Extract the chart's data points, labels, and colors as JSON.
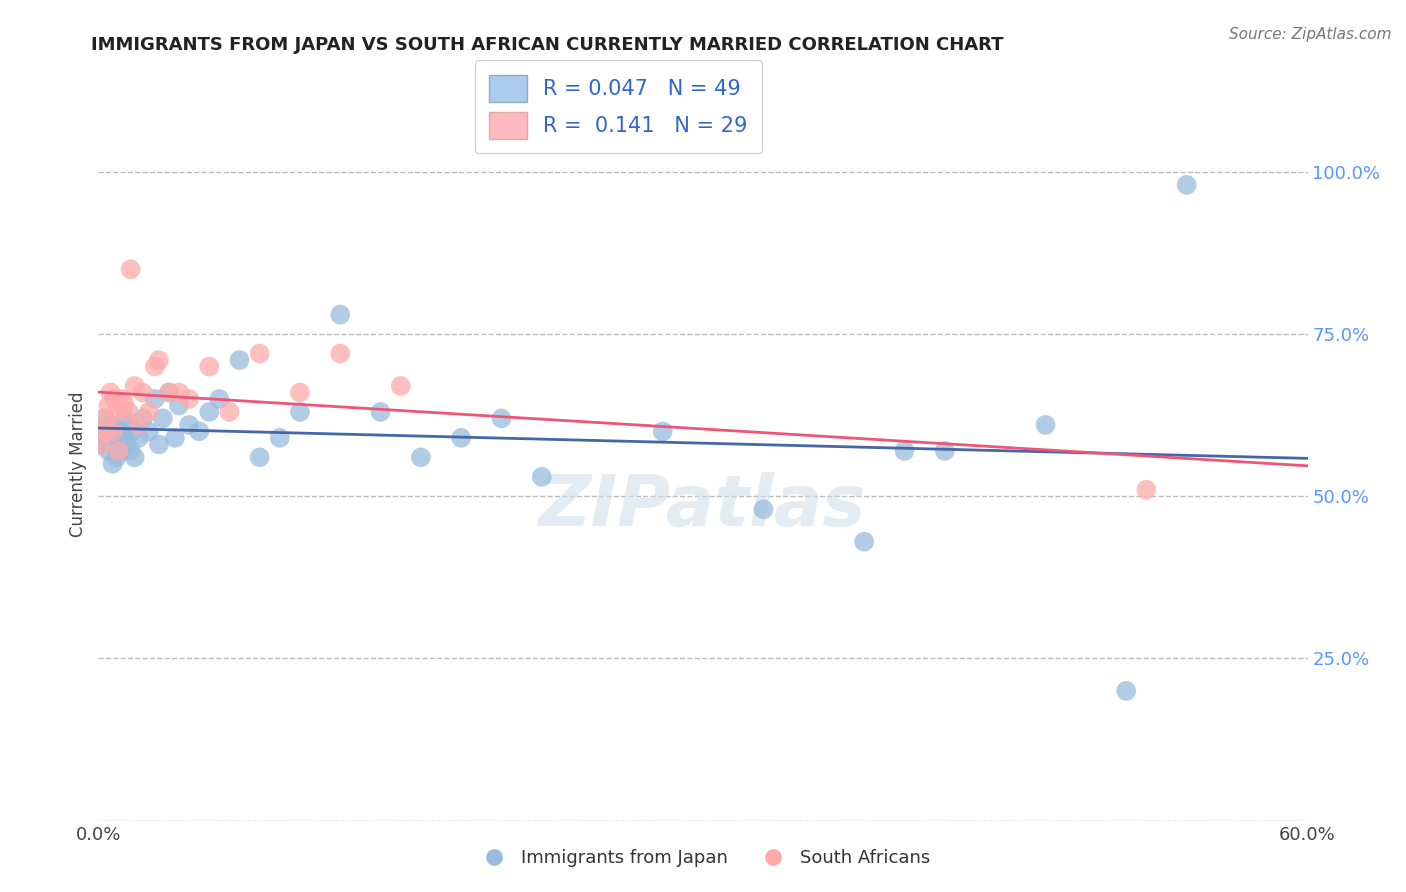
{
  "title": "IMMIGRANTS FROM JAPAN VS SOUTH AFRICAN CURRENTLY MARRIED CORRELATION CHART",
  "source": "Source: ZipAtlas.com",
  "ylabel": "Currently Married",
  "xmin": 0.0,
  "xmax": 0.6,
  "ymin": 0.0,
  "ymax": 1.1,
  "yticks": [
    0.0,
    0.25,
    0.5,
    0.75,
    1.0
  ],
  "ytick_labels": [
    "",
    "25.0%",
    "50.0%",
    "75.0%",
    "100.0%"
  ],
  "xticks": [
    0.0,
    0.15,
    0.3,
    0.45,
    0.6
  ],
  "xtick_labels": [
    "0.0%",
    "",
    "",
    "",
    "60.0%"
  ],
  "blue_color": "#99BBDD",
  "pink_color": "#FFAAAA",
  "blue_line_color": "#4466AA",
  "pink_line_color": "#EE5577",
  "r_blue": 0.047,
  "n_blue": 49,
  "r_pink": 0.141,
  "n_pink": 29,
  "legend_label_blue": "Immigrants from Japan",
  "legend_label_pink": "South Africans",
  "watermark": "ZIPatlas",
  "background_color": "#FFFFFF",
  "grid_color": "#BBBBBB",
  "blue_x": [
    0.001,
    0.002,
    0.003,
    0.004,
    0.005,
    0.006,
    0.007,
    0.008,
    0.009,
    0.01,
    0.011,
    0.012,
    0.013,
    0.014,
    0.015,
    0.016,
    0.017,
    0.018,
    0.02,
    0.022,
    0.025,
    0.028,
    0.03,
    0.032,
    0.035,
    0.038,
    0.04,
    0.045,
    0.05,
    0.055,
    0.06,
    0.07,
    0.08,
    0.09,
    0.1,
    0.12,
    0.14,
    0.16,
    0.18,
    0.2,
    0.22,
    0.28,
    0.33,
    0.38,
    0.4,
    0.42,
    0.47,
    0.51,
    0.54
  ],
  "blue_y": [
    0.58,
    0.6,
    0.62,
    0.59,
    0.57,
    0.61,
    0.55,
    0.58,
    0.56,
    0.6,
    0.57,
    0.59,
    0.62,
    0.58,
    0.61,
    0.57,
    0.6,
    0.56,
    0.59,
    0.62,
    0.6,
    0.65,
    0.58,
    0.62,
    0.66,
    0.59,
    0.64,
    0.61,
    0.6,
    0.63,
    0.65,
    0.71,
    0.56,
    0.59,
    0.63,
    0.78,
    0.63,
    0.56,
    0.59,
    0.62,
    0.53,
    0.6,
    0.48,
    0.43,
    0.57,
    0.57,
    0.61,
    0.2,
    0.98
  ],
  "pink_x": [
    0.001,
    0.003,
    0.004,
    0.005,
    0.006,
    0.007,
    0.008,
    0.009,
    0.01,
    0.012,
    0.013,
    0.015,
    0.016,
    0.018,
    0.02,
    0.022,
    0.025,
    0.028,
    0.03,
    0.035,
    0.04,
    0.045,
    0.055,
    0.065,
    0.08,
    0.1,
    0.12,
    0.15,
    0.52
  ],
  "pink_y": [
    0.58,
    0.62,
    0.6,
    0.64,
    0.66,
    0.6,
    0.65,
    0.63,
    0.57,
    0.65,
    0.64,
    0.63,
    0.85,
    0.67,
    0.61,
    0.66,
    0.63,
    0.7,
    0.71,
    0.66,
    0.66,
    0.65,
    0.7,
    0.63,
    0.72,
    0.66,
    0.72,
    0.67,
    0.51
  ]
}
